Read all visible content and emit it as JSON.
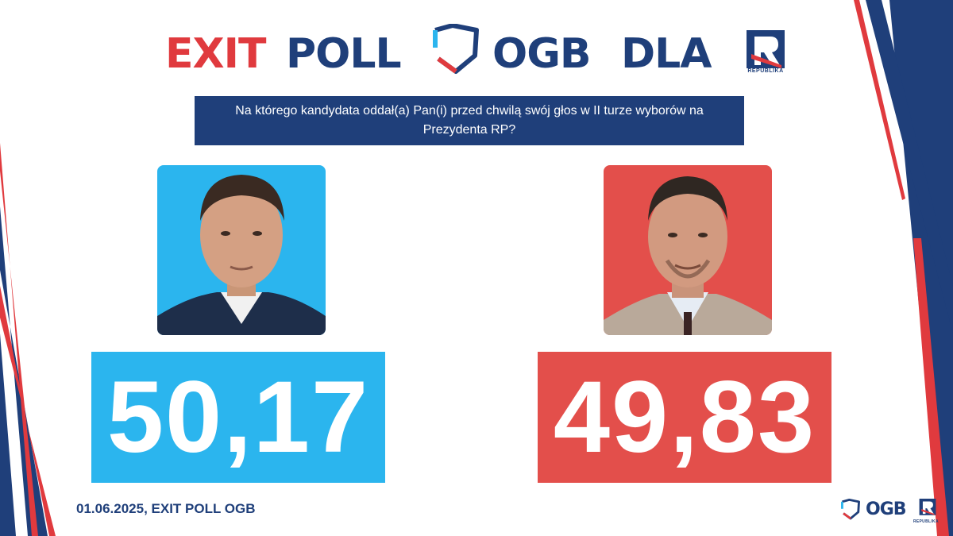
{
  "header": {
    "exit": "EXIT",
    "poll": "POLL",
    "ogb": "OGB",
    "dla": "DLA",
    "republika_label": "REPUBLIKA"
  },
  "question": "Na którego kandydata oddał(a) Pan(i) przed chwilą swój głos w II  turze wyborów na Prezydenta RP?",
  "candidates": [
    {
      "percent": "50,17",
      "color": "#2bb5ee"
    },
    {
      "percent": "49,83",
      "color": "#e34f4b"
    }
  ],
  "footer": {
    "text": "01.06.2025, EXIT POLL OGB",
    "ogb": "OGB",
    "republika_label": "REPUBLIKA"
  },
  "colors": {
    "navy": "#1f3f7a",
    "red": "#e03a3e",
    "blue": "#2bb5ee"
  },
  "icons": [
    "ogb-shield-icon",
    "republika-logo-icon",
    "portrait-left",
    "portrait-right"
  ]
}
